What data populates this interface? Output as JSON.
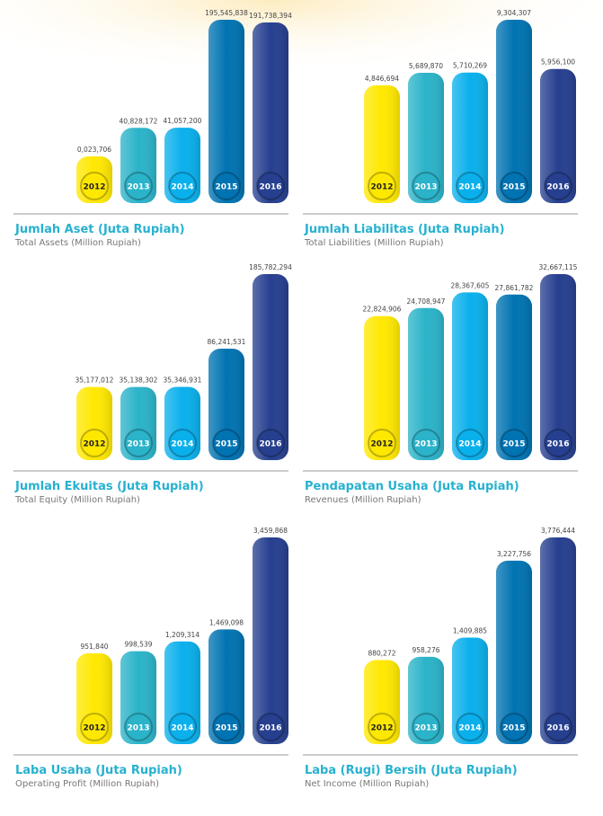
{
  "chart_data": [
    {
      "type": "bar",
      "title": "Jumlah Aset (Juta Rupiah)",
      "subtitle": "Total Assets (Million Rupiah)",
      "categories": [
        "2012",
        "2013",
        "2014",
        "2015",
        "2016"
      ],
      "values": [
        23706,
        40828172,
        41057200,
        195545838,
        191738394
      ],
      "value_labels": [
        "0,023,706",
        "40,828,172",
        "41,057,200",
        "195,545,838",
        "191,738,394"
      ],
      "colors": [
        "#ffe800",
        "#2bb3c9",
        "#0ab0ec",
        "#0073b2",
        "#263f8f"
      ]
    },
    {
      "type": "bar",
      "title": "Jumlah Liabilitas (Juta Rupiah)",
      "subtitle": "Total Liabilities (Million Rupiah)",
      "categories": [
        "2012",
        "2013",
        "2014",
        "2015",
        "2016"
      ],
      "values": [
        4846694,
        5689870,
        5710269,
        9304307,
        5956100
      ],
      "value_labels": [
        "4,846,694",
        "5,689,870",
        "5,710,269",
        "9,304,307",
        "5,956,100"
      ],
      "colors": [
        "#ffe800",
        "#2bb3c9",
        "#0ab0ec",
        "#0073b2",
        "#263f8f"
      ]
    },
    {
      "type": "bar",
      "title": "Jumlah Ekuitas (Juta Rupiah)",
      "subtitle": "Total Equity (Million Rupiah)",
      "categories": [
        "2012",
        "2013",
        "2014",
        "2015",
        "2016"
      ],
      "values": [
        35177012,
        35138302,
        35346931,
        86241531,
        185782294
      ],
      "value_labels": [
        "35,177,012",
        "35,138,302",
        "35,346,931",
        "86,241,531",
        "185,782,294"
      ],
      "colors": [
        "#ffe800",
        "#2bb3c9",
        "#0ab0ec",
        "#0073b2",
        "#263f8f"
      ]
    },
    {
      "type": "bar",
      "title": "Pendapatan Usaha (Juta Rupiah)",
      "subtitle": "Revenues (Million Rupiah)",
      "categories": [
        "2012",
        "2013",
        "2014",
        "2015",
        "2016"
      ],
      "values": [
        22824906,
        24708947,
        28367605,
        27861782,
        32667115
      ],
      "value_labels": [
        "22,824,906",
        "24,708,947",
        "28,367,605",
        "27,861,782",
        "32,667,115"
      ],
      "colors": [
        "#ffe800",
        "#2bb3c9",
        "#0ab0ec",
        "#0073b2",
        "#263f8f"
      ]
    },
    {
      "type": "bar",
      "title": "Laba Usaha (Juta Rupiah)",
      "subtitle": "Operating Profit (Million Rupiah)",
      "categories": [
        "2012",
        "2013",
        "2014",
        "2015",
        "2016"
      ],
      "values": [
        951840,
        998539,
        1209314,
        1469098,
        3459868
      ],
      "value_labels": [
        "951,840",
        "998,539",
        "1,209,314",
        "1,469,098",
        "3,459,868"
      ],
      "colors": [
        "#ffe800",
        "#2bb3c9",
        "#0ab0ec",
        "#0073b2",
        "#263f8f"
      ]
    },
    {
      "type": "bar",
      "title": "Laba (Rugi) Bersih (Juta Rupiah)",
      "subtitle": "Net Income (Million Rupiah)",
      "categories": [
        "2012",
        "2013",
        "2014",
        "2015",
        "2016"
      ],
      "values": [
        880272,
        958276,
        1409885,
        3227756,
        3776444
      ],
      "value_labels": [
        "880,272",
        "958,276",
        "1,409,885",
        "3,227,756",
        "3,776,444"
      ],
      "colors": [
        "#ffe800",
        "#2bb3c9",
        "#0ab0ec",
        "#0073b2",
        "#263f8f"
      ]
    }
  ]
}
